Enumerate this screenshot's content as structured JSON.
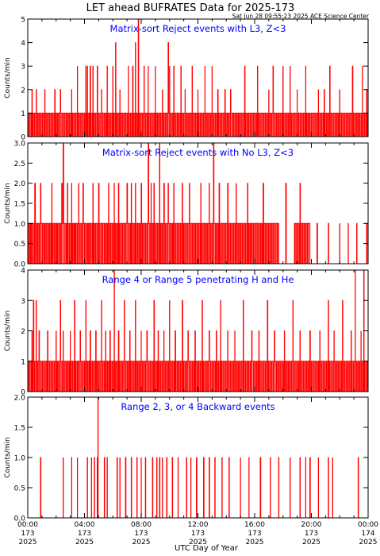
{
  "title": "LET ahead BUFRATES Data for 2025-173",
  "timestamp": "Sat Jun 28 09:55:23 2025 ACE Science Center",
  "xlabel": "UTC Day of Year",
  "colors": {
    "trace": "#ff0000",
    "title_text": "#0000ff",
    "axes": "#000000",
    "background": "#ffffff"
  },
  "x_ticks": [
    {
      "time": "00:00",
      "doy": "173",
      "year": "2025"
    },
    {
      "time": "04:00",
      "doy": "173",
      "year": "2025"
    },
    {
      "time": "08:00",
      "doy": "173",
      "year": "2025"
    },
    {
      "time": "12:00",
      "doy": "173",
      "year": "2025"
    },
    {
      "time": "16:00",
      "doy": "173",
      "year": "2025"
    },
    {
      "time": "20:00",
      "doy": "173",
      "year": "2025"
    },
    {
      "time": "00:00",
      "doy": "174",
      "year": "2025"
    }
  ],
  "chart_data": [
    {
      "type": "line",
      "title": "Matrix-sort Reject events with L3, Z<3",
      "ylabel": "Counts/min",
      "xlim": [
        0,
        24
      ],
      "ylim": [
        0,
        5
      ],
      "yticks": [
        "0",
        "1",
        "2",
        "3",
        "4",
        "5"
      ],
      "grid": false,
      "x_unit": "hours UTC, day 173",
      "spikes": [
        [
          0.3,
          2
        ],
        [
          0.6,
          2
        ],
        [
          1.2,
          2
        ],
        [
          1.9,
          2
        ],
        [
          2.3,
          2
        ],
        [
          3.1,
          2
        ],
        [
          3.5,
          3
        ],
        [
          4.1,
          3
        ],
        [
          4.2,
          3
        ],
        [
          4.4,
          3
        ],
        [
          4.6,
          3
        ],
        [
          4.9,
          3
        ],
        [
          5.2,
          2
        ],
        [
          5.6,
          3
        ],
        [
          6.0,
          3
        ],
        [
          6.2,
          4
        ],
        [
          6.5,
          2
        ],
        [
          7.1,
          3
        ],
        [
          7.4,
          3
        ],
        [
          7.6,
          4
        ],
        [
          7.8,
          5
        ],
        [
          8.2,
          3
        ],
        [
          8.5,
          3
        ],
        [
          9.0,
          3
        ],
        [
          9.5,
          2
        ],
        [
          9.9,
          4
        ],
        [
          10.0,
          3
        ],
        [
          10.3,
          3
        ],
        [
          10.8,
          3
        ],
        [
          11.1,
          2
        ],
        [
          11.6,
          3
        ],
        [
          12.0,
          2
        ],
        [
          12.5,
          3
        ],
        [
          13.0,
          3
        ],
        [
          13.4,
          2
        ],
        [
          13.9,
          2
        ],
        [
          14.3,
          2
        ],
        [
          15.3,
          3
        ],
        [
          16.2,
          3
        ],
        [
          17.0,
          2
        ],
        [
          17.3,
          3
        ],
        [
          18.0,
          3
        ],
        [
          18.5,
          3
        ],
        [
          19.0,
          2
        ],
        [
          19.6,
          3
        ],
        [
          20.5,
          2
        ],
        [
          20.9,
          2
        ],
        [
          21.3,
          3
        ],
        [
          22.0,
          2
        ],
        [
          22.9,
          3
        ],
        [
          23.6,
          3
        ],
        [
          23.9,
          2
        ]
      ],
      "baseline_segments": [
        [
          0,
          24,
          1
        ]
      ]
    },
    {
      "type": "line",
      "title": "Matrix-sort Reject events with No L3, Z<3",
      "ylabel": "Counts/min",
      "xlim": [
        0,
        24
      ],
      "ylim": [
        0,
        3
      ],
      "yticks": [
        "0.0",
        "0.5",
        "1.0",
        "1.5",
        "2.0",
        "2.5",
        "3.0"
      ],
      "grid": false,
      "x_unit": "hours UTC, day 173",
      "spikes": [
        [
          0.2,
          1
        ],
        [
          0.5,
          2
        ],
        [
          0.6,
          1
        ],
        [
          0.9,
          2
        ],
        [
          1.2,
          1
        ],
        [
          1.7,
          2
        ],
        [
          2.0,
          1
        ],
        [
          2.4,
          2
        ],
        [
          2.5,
          3
        ],
        [
          2.8,
          2
        ],
        [
          3.1,
          2
        ],
        [
          3.3,
          1
        ],
        [
          3.6,
          2
        ],
        [
          3.9,
          2
        ],
        [
          4.3,
          1
        ],
        [
          4.6,
          2
        ],
        [
          5.0,
          2
        ],
        [
          5.3,
          1
        ],
        [
          5.7,
          2
        ],
        [
          6.1,
          2
        ],
        [
          6.4,
          2
        ],
        [
          7.0,
          2
        ],
        [
          7.3,
          2
        ],
        [
          7.6,
          2
        ],
        [
          8.0,
          2
        ],
        [
          8.5,
          3
        ],
        [
          8.7,
          2
        ],
        [
          8.9,
          2
        ],
        [
          9.3,
          3
        ],
        [
          9.6,
          2
        ],
        [
          9.9,
          2
        ],
        [
          10.3,
          2
        ],
        [
          10.9,
          2
        ],
        [
          11.4,
          2
        ],
        [
          12.2,
          2
        ],
        [
          12.8,
          2
        ],
        [
          13.1,
          3
        ],
        [
          13.5,
          2
        ],
        [
          14.1,
          2
        ],
        [
          14.7,
          2
        ],
        [
          15.5,
          2
        ],
        [
          16.6,
          2
        ],
        [
          17.4,
          1
        ],
        [
          18.2,
          2
        ],
        [
          19.2,
          2
        ],
        [
          19.8,
          1
        ],
        [
          20.4,
          1
        ],
        [
          21.2,
          1
        ],
        [
          22.0,
          1
        ],
        [
          22.6,
          1
        ],
        [
          23.2,
          1
        ],
        [
          23.9,
          1
        ]
      ],
      "baseline_segments": [
        [
          0,
          17.7,
          1
        ],
        [
          17.7,
          18.8,
          0
        ],
        [
          18.8,
          19.9,
          1
        ],
        [
          19.9,
          24,
          0
        ]
      ]
    },
    {
      "type": "line",
      "title": "Range 4 or Range 5 penetrating H and He",
      "ylabel": "Counts/min",
      "xlim": [
        0,
        24
      ],
      "ylim": [
        0,
        4
      ],
      "yticks": [
        "0",
        "1",
        "2",
        "3",
        "4"
      ],
      "grid": false,
      "x_unit": "hours UTC, day 173",
      "spikes": [
        [
          0.3,
          2
        ],
        [
          0.4,
          3
        ],
        [
          0.6,
          3
        ],
        [
          0.8,
          2
        ],
        [
          1.4,
          2
        ],
        [
          2.0,
          2
        ],
        [
          2.3,
          3
        ],
        [
          2.5,
          2
        ],
        [
          3.0,
          2
        ],
        [
          3.3,
          3
        ],
        [
          3.7,
          2
        ],
        [
          4.1,
          3
        ],
        [
          4.4,
          2
        ],
        [
          4.8,
          2
        ],
        [
          5.2,
          3
        ],
        [
          5.5,
          2
        ],
        [
          5.8,
          2
        ],
        [
          6.1,
          4
        ],
        [
          6.4,
          2
        ],
        [
          6.8,
          3
        ],
        [
          7.2,
          2
        ],
        [
          7.6,
          3
        ],
        [
          8.0,
          2
        ],
        [
          8.4,
          2
        ],
        [
          8.9,
          3
        ],
        [
          9.2,
          2
        ],
        [
          9.6,
          2
        ],
        [
          10.0,
          3
        ],
        [
          10.4,
          2
        ],
        [
          10.9,
          3
        ],
        [
          11.3,
          2
        ],
        [
          11.8,
          2
        ],
        [
          12.3,
          3
        ],
        [
          12.8,
          2
        ],
        [
          13.3,
          2
        ],
        [
          13.6,
          3
        ],
        [
          14.1,
          2
        ],
        [
          14.6,
          2
        ],
        [
          15.2,
          3
        ],
        [
          15.8,
          2
        ],
        [
          16.3,
          2
        ],
        [
          16.9,
          3
        ],
        [
          17.4,
          2
        ],
        [
          18.1,
          2
        ],
        [
          18.7,
          3
        ],
        [
          19.2,
          2
        ],
        [
          19.9,
          2
        ],
        [
          20.6,
          2
        ],
        [
          21.2,
          3
        ],
        [
          21.6,
          2
        ],
        [
          22.2,
          3
        ],
        [
          22.8,
          2
        ],
        [
          23.1,
          4
        ],
        [
          23.5,
          2
        ],
        [
          23.7,
          4
        ]
      ],
      "baseline_segments": [
        [
          0,
          24,
          1
        ]
      ]
    },
    {
      "type": "line",
      "title": "Range 2, 3, or 4 Backward events",
      "ylabel": "Counts/min",
      "xlim": [
        0,
        24
      ],
      "ylim": [
        0,
        2
      ],
      "yticks": [
        "0.0",
        "0.5",
        "1.0",
        "1.5",
        "2.0"
      ],
      "grid": false,
      "x_unit": "hours UTC, day 173",
      "spikes": [
        [
          0.9,
          1
        ],
        [
          2.5,
          1
        ],
        [
          3.1,
          1
        ],
        [
          3.5,
          1
        ],
        [
          4.2,
          1
        ],
        [
          4.5,
          1
        ],
        [
          4.7,
          1
        ],
        [
          4.9,
          1
        ],
        [
          4.95,
          2
        ],
        [
          5.4,
          1
        ],
        [
          5.6,
          1
        ],
        [
          6.3,
          1
        ],
        [
          6.5,
          1
        ],
        [
          6.9,
          1
        ],
        [
          7.3,
          1
        ],
        [
          7.7,
          1
        ],
        [
          8.0,
          1
        ],
        [
          8.3,
          1
        ],
        [
          8.8,
          1
        ],
        [
          9.1,
          1
        ],
        [
          9.3,
          1
        ],
        [
          9.5,
          1
        ],
        [
          9.8,
          1
        ],
        [
          10.2,
          1
        ],
        [
          10.6,
          1
        ],
        [
          11.2,
          1
        ],
        [
          11.5,
          1
        ],
        [
          11.9,
          1
        ],
        [
          12.4,
          1
        ],
        [
          12.8,
          1
        ],
        [
          13.2,
          1
        ],
        [
          13.7,
          1
        ],
        [
          14.2,
          1
        ],
        [
          15.0,
          1
        ],
        [
          15.6,
          1
        ],
        [
          16.4,
          1
        ],
        [
          17.1,
          1
        ],
        [
          17.7,
          1
        ],
        [
          18.5,
          1
        ],
        [
          19.2,
          1
        ],
        [
          19.6,
          1
        ],
        [
          19.9,
          1
        ],
        [
          20.5,
          1
        ],
        [
          21.2,
          1
        ],
        [
          21.5,
          1
        ],
        [
          23.3,
          1
        ]
      ],
      "baseline_segments": [
        [
          0,
          24,
          0
        ]
      ]
    }
  ]
}
